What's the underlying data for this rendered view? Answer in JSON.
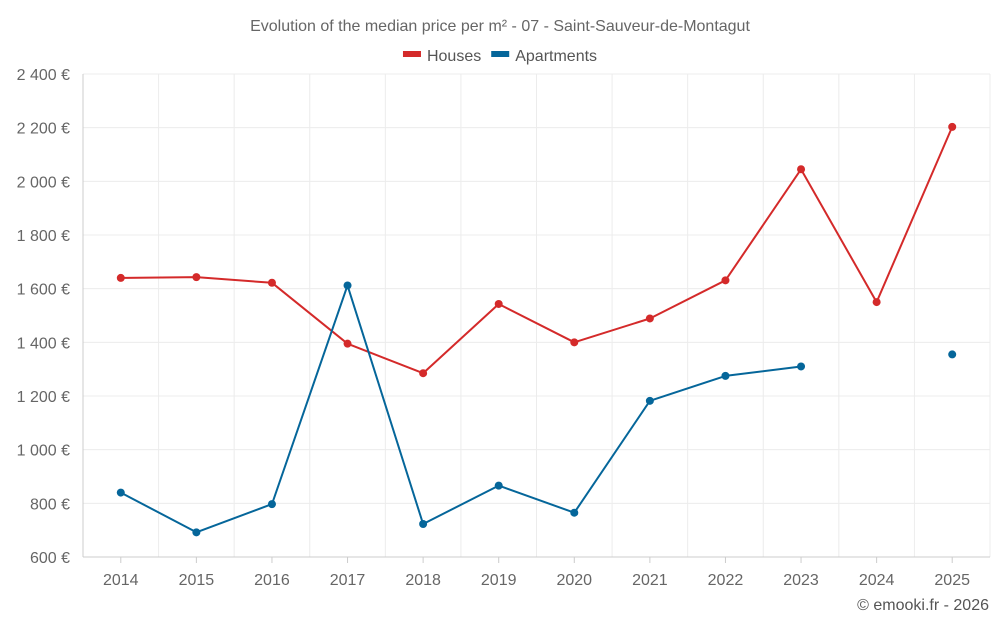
{
  "chart_data": {
    "type": "line",
    "title": "Evolution of the median price per m² - 07 - Saint-Sauveur-de-Montagut",
    "categories": [
      "2014",
      "2015",
      "2016",
      "2017",
      "2018",
      "2019",
      "2020",
      "2021",
      "2022",
      "2023",
      "2024",
      "2025"
    ],
    "series": [
      {
        "name": "Houses",
        "color": "#d42a2a",
        "values": [
          1640,
          1643,
          1622,
          1395,
          1285,
          1543,
          1400,
          1489,
          1631,
          2045,
          1550,
          2203
        ]
      },
      {
        "name": "Apartments",
        "color": "#05669a",
        "values": [
          840,
          692,
          797,
          1612,
          723,
          866,
          765,
          1182,
          1275,
          1310,
          null,
          1355
        ]
      }
    ],
    "y_ticks": [
      600,
      800,
      1000,
      1200,
      1400,
      1600,
      1800,
      2000,
      2200,
      2400
    ],
    "y_tick_labels": [
      "600 €",
      "800 €",
      "1 000 €",
      "1 200 €",
      "1 400 €",
      "1 600 €",
      "1 800 €",
      "2 000 €",
      "2 200 €",
      "2 400 €"
    ],
    "ylim": [
      600,
      2400
    ],
    "xlabel": "",
    "ylabel": "",
    "grid": true,
    "legend_position": "top-center"
  },
  "credit": "© emooki.fr - 2026"
}
